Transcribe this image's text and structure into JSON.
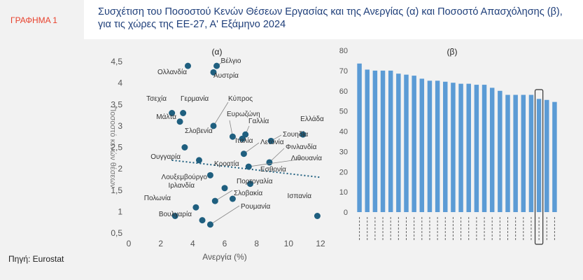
{
  "figure_label": "ΓΡΑΦΗΜΑ 1",
  "title_line1": "Συσχέτιση του Ποσοστού Κενών Θέσεων Εργασίας και της Ανεργίας (α) και Ποσοστό Απασχόλησης (β),",
  "title_line2": "για τις χώρες της ΕΕ-27, Α' Εξάμηνο 2024",
  "source": "Πηγή: Eurostat",
  "colors": {
    "marker": "#1f5f7f",
    "bar": "#5b9bd5",
    "title": "#1f3f7a",
    "figure_label": "#e8412c",
    "highlight": "#333333"
  },
  "chart_data": [
    {
      "type": "scatter",
      "panel_label": "(α)",
      "xlabel": "Ανεργία (%)",
      "ylabel": "Ποσοστό κενών θέσεων",
      "xlim": [
        0,
        12
      ],
      "ylim": [
        0.5,
        4.5
      ],
      "xticks": [
        "0",
        "2",
        "4",
        "6",
        "8",
        "10",
        "12"
      ],
      "yticks": [
        "0,5",
        "1",
        "1,5",
        "2",
        "2,5",
        "3",
        "3,5",
        "4",
        "4,5"
      ],
      "trendline": {
        "style": "dotted",
        "from": [
          2.7,
          2.2
        ],
        "to": [
          12,
          1.8
        ]
      },
      "points": [
        {
          "label": "Βέλγιο",
          "x": 5.5,
          "y": 4.4
        },
        {
          "label": "Ολλανδία",
          "x": 3.7,
          "y": 4.4
        },
        {
          "label": "Αυστρία",
          "x": 5.3,
          "y": 4.25
        },
        {
          "label": "Τσεχία",
          "x": 2.7,
          "y": 3.3
        },
        {
          "label": "Γερμανία",
          "x": 3.4,
          "y": 3.3
        },
        {
          "label": "Μάλτα",
          "x": 3.2,
          "y": 3.1
        },
        {
          "label": "Κύπρος",
          "x": 5.3,
          "y": 3.0
        },
        {
          "label": "Ευρωζώνη",
          "x": 6.5,
          "y": 2.75
        },
        {
          "label": "Γαλλία",
          "x": 7.3,
          "y": 2.8
        },
        {
          "label": "Ελλάδα",
          "x": 10.9,
          "y": 2.8
        },
        {
          "label": "Σουηδία",
          "x": 8.9,
          "y": 2.65
        },
        {
          "label": "Σλοβενία",
          "x": 3.5,
          "y": 2.5
        },
        {
          "label": "Ιταλία",
          "x": 7.1,
          "y": 2.7
        },
        {
          "label": "Λετονία",
          "x": 7.2,
          "y": 2.35
        },
        {
          "label": "Φινλανδία",
          "x": 8.8,
          "y": 2.15
        },
        {
          "label": "Ουγγαρία",
          "x": 4.4,
          "y": 2.2
        },
        {
          "label": "Λιθουανία",
          "x": 7.5,
          "y": 2.05
        },
        {
          "label": "Κροατία",
          "x": 5.1,
          "y": 1.85
        },
        {
          "label": "Εσθονία",
          "x": 7.6,
          "y": 1.65
        },
        {
          "label": "Λουξεμβούργο",
          "x": 6.0,
          "y": 1.55
        },
        {
          "label": "Πορτογαλία",
          "x": 6.5,
          "y": 1.3
        },
        {
          "label": "Ιρλανδία",
          "x": 4.2,
          "y": 1.1
        },
        {
          "label": "Σλοβακία",
          "x": 5.4,
          "y": 1.25
        },
        {
          "label": "Πολωνία",
          "x": 2.9,
          "y": 0.9
        },
        {
          "label": "Ισπανία",
          "x": 11.8,
          "y": 0.9
        },
        {
          "label": "Βουλγαρία",
          "x": 4.6,
          "y": 0.8
        },
        {
          "label": "Ρουμανία",
          "x": 5.1,
          "y": 0.7
        }
      ]
    },
    {
      "type": "bar",
      "panel_label": "(β)",
      "ylim": [
        0,
        80
      ],
      "yticks": [
        "0",
        "10",
        "20",
        "30",
        "40",
        "50",
        "60",
        "70",
        "80"
      ],
      "values": [
        73.5,
        70.5,
        70,
        70,
        70,
        68.5,
        68,
        67.5,
        66,
        65,
        65,
        64.5,
        64,
        63.5,
        63.5,
        63,
        63,
        61.5,
        60,
        58,
        58,
        58,
        58,
        56,
        55.5,
        54.5
      ],
      "highlight_index": 23
    }
  ]
}
